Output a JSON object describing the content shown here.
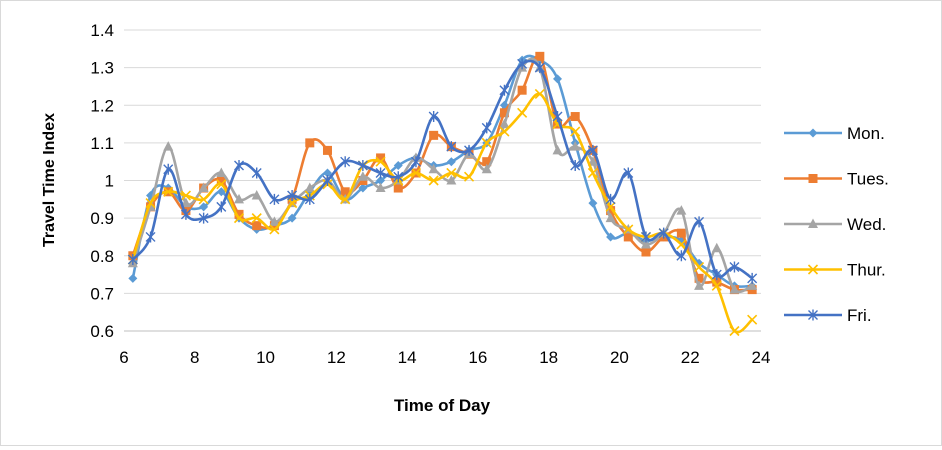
{
  "chart_data": {
    "type": "line",
    "title": "",
    "xlabel": "Time of Day",
    "ylabel": "Travel Time Index",
    "xlim": [
      6,
      24
    ],
    "ylim": [
      0.6,
      1.4
    ],
    "x_ticks": [
      6,
      8,
      10,
      12,
      14,
      16,
      18,
      20,
      22,
      24
    ],
    "y_ticks": [
      0.6,
      0.7,
      0.8,
      0.9,
      1,
      1.1,
      1.2,
      1.3,
      1.4
    ],
    "y_tick_labels": [
      "0.6",
      "0.7",
      "0.8",
      "0.9",
      "1",
      "1.1",
      "1.2",
      "1.3",
      "1.4"
    ],
    "grid": "horizontal",
    "legend": "right",
    "series": [
      {
        "name": "Mon.",
        "color": "#5b9bd5",
        "marker": "diamond",
        "points": [
          [
            6.25,
            0.74
          ],
          [
            6.75,
            0.96
          ],
          [
            7.25,
            0.98
          ],
          [
            7.75,
            0.93
          ],
          [
            8.25,
            0.93
          ],
          [
            8.75,
            0.97
          ],
          [
            9.25,
            0.9
          ],
          [
            9.75,
            0.87
          ],
          [
            10.25,
            0.88
          ],
          [
            10.75,
            0.9
          ],
          [
            11.25,
            0.97
          ],
          [
            11.75,
            1.02
          ],
          [
            12.25,
            0.95
          ],
          [
            12.75,
            0.98
          ],
          [
            13.25,
            1.0
          ],
          [
            13.75,
            1.04
          ],
          [
            14.25,
            1.06
          ],
          [
            14.75,
            1.04
          ],
          [
            15.25,
            1.05
          ],
          [
            15.75,
            1.08
          ],
          [
            16.25,
            1.1
          ],
          [
            16.75,
            1.2
          ],
          [
            17.25,
            1.32
          ],
          [
            17.75,
            1.32
          ],
          [
            18.25,
            1.27
          ],
          [
            18.75,
            1.1
          ],
          [
            19.25,
            0.94
          ],
          [
            19.75,
            0.85
          ],
          [
            20.25,
            0.86
          ],
          [
            20.75,
            0.84
          ],
          [
            21.25,
            0.85
          ],
          [
            21.75,
            0.84
          ],
          [
            22.25,
            0.78
          ],
          [
            22.75,
            0.75
          ],
          [
            23.25,
            0.72
          ],
          [
            23.75,
            0.72
          ]
        ]
      },
      {
        "name": "Tues.",
        "color": "#ed7d31",
        "marker": "square",
        "points": [
          [
            6.25,
            0.8
          ],
          [
            6.75,
            0.93
          ],
          [
            7.25,
            0.97
          ],
          [
            7.75,
            0.92
          ],
          [
            8.25,
            0.98
          ],
          [
            8.75,
            1.0
          ],
          [
            9.25,
            0.91
          ],
          [
            9.75,
            0.88
          ],
          [
            10.25,
            0.88
          ],
          [
            10.75,
            0.95
          ],
          [
            11.25,
            1.1
          ],
          [
            11.75,
            1.08
          ],
          [
            12.25,
            0.97
          ],
          [
            12.75,
            1.0
          ],
          [
            13.25,
            1.06
          ],
          [
            13.75,
            0.98
          ],
          [
            14.25,
            1.02
          ],
          [
            14.75,
            1.12
          ],
          [
            15.25,
            1.09
          ],
          [
            15.75,
            1.07
          ],
          [
            16.25,
            1.05
          ],
          [
            16.75,
            1.18
          ],
          [
            17.25,
            1.24
          ],
          [
            17.75,
            1.33
          ],
          [
            18.25,
            1.15
          ],
          [
            18.75,
            1.17
          ],
          [
            19.25,
            1.08
          ],
          [
            19.75,
            0.92
          ],
          [
            20.25,
            0.85
          ],
          [
            20.75,
            0.81
          ],
          [
            21.25,
            0.85
          ],
          [
            21.75,
            0.86
          ],
          [
            22.25,
            0.74
          ],
          [
            22.75,
            0.73
          ],
          [
            23.25,
            0.71
          ],
          [
            23.75,
            0.71
          ]
        ]
      },
      {
        "name": "Wed.",
        "color": "#a5a5a5",
        "marker": "triangle",
        "points": [
          [
            6.25,
            0.78
          ],
          [
            6.75,
            0.93
          ],
          [
            7.25,
            1.09
          ],
          [
            7.75,
            0.94
          ],
          [
            8.25,
            0.98
          ],
          [
            8.75,
            1.02
          ],
          [
            9.25,
            0.95
          ],
          [
            9.75,
            0.96
          ],
          [
            10.25,
            0.89
          ],
          [
            10.75,
            0.94
          ],
          [
            11.25,
            0.98
          ],
          [
            11.75,
            1.0
          ],
          [
            12.25,
            0.95
          ],
          [
            12.75,
            1.01
          ],
          [
            13.25,
            0.98
          ],
          [
            13.75,
            1.0
          ],
          [
            14.25,
            1.06
          ],
          [
            14.75,
            1.03
          ],
          [
            15.25,
            1.0
          ],
          [
            15.75,
            1.07
          ],
          [
            16.25,
            1.03
          ],
          [
            16.75,
            1.15
          ],
          [
            17.25,
            1.3
          ],
          [
            17.75,
            1.3
          ],
          [
            18.25,
            1.08
          ],
          [
            18.75,
            1.09
          ],
          [
            19.25,
            1.05
          ],
          [
            19.75,
            0.9
          ],
          [
            20.25,
            0.87
          ],
          [
            20.75,
            0.83
          ],
          [
            21.25,
            0.86
          ],
          [
            21.75,
            0.92
          ],
          [
            22.25,
            0.72
          ],
          [
            22.75,
            0.82
          ],
          [
            23.25,
            0.71
          ],
          [
            23.75,
            0.72
          ]
        ]
      },
      {
        "name": "Thur.",
        "color": "#ffc000",
        "marker": "x",
        "points": [
          [
            6.25,
            0.79
          ],
          [
            6.75,
            0.94
          ],
          [
            7.25,
            0.97
          ],
          [
            7.75,
            0.96
          ],
          [
            8.25,
            0.95
          ],
          [
            8.75,
            0.99
          ],
          [
            9.25,
            0.9
          ],
          [
            9.75,
            0.9
          ],
          [
            10.25,
            0.87
          ],
          [
            10.75,
            0.94
          ],
          [
            11.25,
            0.96
          ],
          [
            11.75,
            0.99
          ],
          [
            12.25,
            0.95
          ],
          [
            12.75,
            1.04
          ],
          [
            13.25,
            1.05
          ],
          [
            13.75,
            1.0
          ],
          [
            14.25,
            1.02
          ],
          [
            14.75,
            1.0
          ],
          [
            15.25,
            1.02
          ],
          [
            15.75,
            1.01
          ],
          [
            16.25,
            1.1
          ],
          [
            16.75,
            1.13
          ],
          [
            17.25,
            1.18
          ],
          [
            17.75,
            1.23
          ],
          [
            18.25,
            1.15
          ],
          [
            18.75,
            1.13
          ],
          [
            19.25,
            1.02
          ],
          [
            19.75,
            0.93
          ],
          [
            20.25,
            0.87
          ],
          [
            20.75,
            0.85
          ],
          [
            21.25,
            0.86
          ],
          [
            21.75,
            0.83
          ],
          [
            22.25,
            0.77
          ],
          [
            22.75,
            0.72
          ],
          [
            23.25,
            0.6
          ],
          [
            23.75,
            0.63
          ]
        ]
      },
      {
        "name": "Fri.",
        "color": "#4472c4",
        "marker": "star",
        "points": [
          [
            6.25,
            0.79
          ],
          [
            6.75,
            0.85
          ],
          [
            7.25,
            1.03
          ],
          [
            7.75,
            0.91
          ],
          [
            8.25,
            0.9
          ],
          [
            8.75,
            0.93
          ],
          [
            9.25,
            1.04
          ],
          [
            9.75,
            1.02
          ],
          [
            10.25,
            0.95
          ],
          [
            10.75,
            0.96
          ],
          [
            11.25,
            0.95
          ],
          [
            11.75,
            1.0
          ],
          [
            12.25,
            1.05
          ],
          [
            12.75,
            1.04
          ],
          [
            13.25,
            1.02
          ],
          [
            13.75,
            1.01
          ],
          [
            14.25,
            1.05
          ],
          [
            14.75,
            1.17
          ],
          [
            15.25,
            1.09
          ],
          [
            15.75,
            1.08
          ],
          [
            16.25,
            1.14
          ],
          [
            16.75,
            1.24
          ],
          [
            17.25,
            1.31
          ],
          [
            17.75,
            1.3
          ],
          [
            18.25,
            1.17
          ],
          [
            18.75,
            1.04
          ],
          [
            19.25,
            1.08
          ],
          [
            19.75,
            0.95
          ],
          [
            20.25,
            1.02
          ],
          [
            20.75,
            0.85
          ],
          [
            21.25,
            0.86
          ],
          [
            21.75,
            0.8
          ],
          [
            22.25,
            0.89
          ],
          [
            22.75,
            0.75
          ],
          [
            23.25,
            0.77
          ],
          [
            23.75,
            0.74
          ]
        ]
      }
    ]
  }
}
